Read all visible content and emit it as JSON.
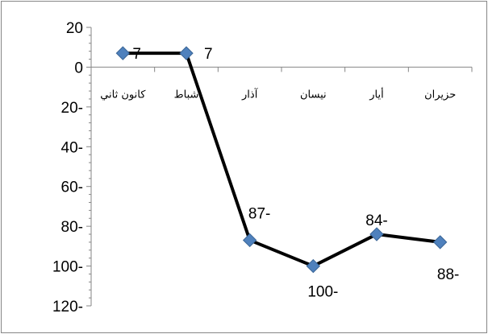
{
  "chart_data": {
    "type": "line",
    "categories": [
      "كانون ثاني",
      "شباط",
      "آذار",
      "نيسان",
      "أيار",
      "حزيران"
    ],
    "series": [
      {
        "values": [
          7,
          7,
          -87,
          -100,
          -84,
          -88
        ]
      }
    ],
    "data_labels": [
      "7",
      "7",
      "87-",
      "100-",
      "84-",
      "88-"
    ],
    "y_tick_labels": [
      "20",
      "0",
      "20-",
      "40-",
      "60-",
      "80-",
      "100-",
      "120-"
    ],
    "y_ticks": [
      20,
      0,
      -20,
      -40,
      -60,
      -80,
      -100,
      -120
    ],
    "ylim": [
      -120,
      20
    ],
    "grid": false,
    "legend": "none",
    "line_color": "#000000",
    "marker_color": "#4F81BD",
    "marker_shape": "diamond",
    "border_color": "#868686"
  }
}
